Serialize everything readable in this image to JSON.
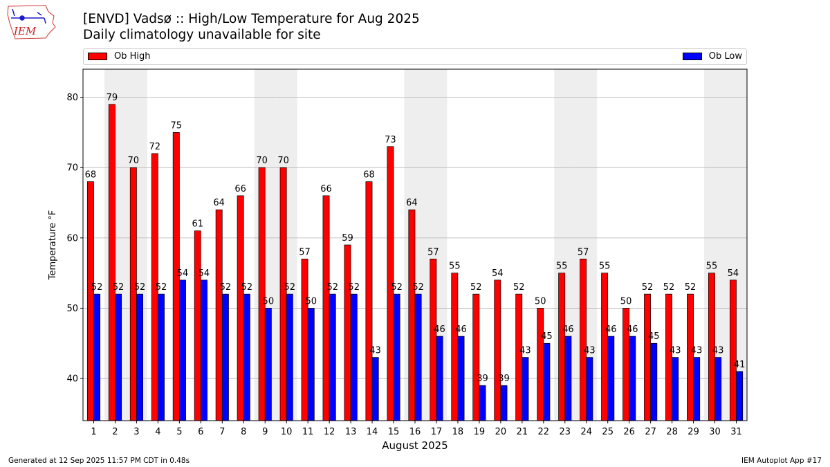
{
  "logo": {
    "text": "IEM"
  },
  "title_line1": "[ENVD] Vadsø :: High/Low Temperature for Aug 2025",
  "title_line2": "Daily climatology unavailable for site",
  "footer_left": "Generated at 12 Sep 2025 11:57 PM CDT in 0.48s",
  "footer_right": "IEM Autoplot App #17",
  "chart_data": {
    "type": "bar",
    "xlabel": "August 2025",
    "ylabel": "Temperature °F",
    "ylim": [
      34,
      84
    ],
    "yticks": [
      40,
      50,
      60,
      70,
      80
    ],
    "grid": true,
    "legend": "top",
    "categories": [
      "1",
      "2",
      "3",
      "4",
      "5",
      "6",
      "7",
      "8",
      "9",
      "10",
      "11",
      "12",
      "13",
      "14",
      "15",
      "16",
      "17",
      "18",
      "19",
      "20",
      "21",
      "22",
      "23",
      "24",
      "25",
      "26",
      "27",
      "28",
      "29",
      "30",
      "31"
    ],
    "weekend_shaded_days": [
      2,
      3,
      9,
      10,
      16,
      17,
      23,
      24,
      30,
      31
    ],
    "series": [
      {
        "name": "Ob High",
        "color": "#ff0000",
        "values": [
          68,
          79,
          70,
          72,
          75,
          61,
          64,
          66,
          70,
          70,
          57,
          66,
          59,
          68,
          73,
          64,
          57,
          55,
          52,
          54,
          52,
          50,
          55,
          57,
          55,
          50,
          52,
          52,
          52,
          55,
          54
        ]
      },
      {
        "name": "Ob Low",
        "color": "#0000ff",
        "values": [
          52,
          52,
          52,
          52,
          54,
          54,
          52,
          52,
          50,
          52,
          50,
          52,
          52,
          43,
          52,
          52,
          46,
          46,
          39,
          39,
          43,
          45,
          46,
          43,
          46,
          46,
          45,
          43,
          43,
          43,
          41
        ]
      }
    ]
  }
}
